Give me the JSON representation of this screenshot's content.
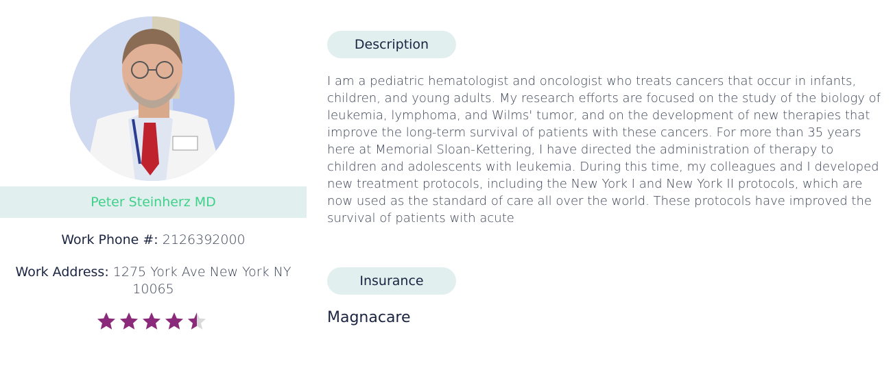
{
  "profile": {
    "name": "Peter Steinherz MD",
    "phone_label": "Work Phone #:",
    "phone_value": "2126392000",
    "address_label": "Work Address:",
    "address_value": "1275 York Ave New York NY 10065",
    "rating": 4.5,
    "rating_max": 5,
    "star_color": "#8b2a7a"
  },
  "description": {
    "heading": "Description",
    "text": "I am a pediatric hematologist and oncologist who treats cancers that occur in infants, children, and young adults. My research efforts are focused on the study of the biology of leukemia, lymphoma, and Wilms' tumor, and on the development of new therapies that improve the long-term survival of patients with these cancers. For more than 35 years here at Memorial Sloan-Kettering, I have directed the administration of therapy to children and adolescents with leukemia. During this time, my colleagues and I developed new treatment protocols, including the New York I and New York II protocols, which are now used as the standard of care all over the world. These protocols have improved the survival of patients with acute"
  },
  "insurance": {
    "heading": "Insurance",
    "value": "Magnacare"
  },
  "colors": {
    "accent_green": "#3fd08a",
    "pill_bg": "#e2efef",
    "text_dark": "#1a2340"
  }
}
